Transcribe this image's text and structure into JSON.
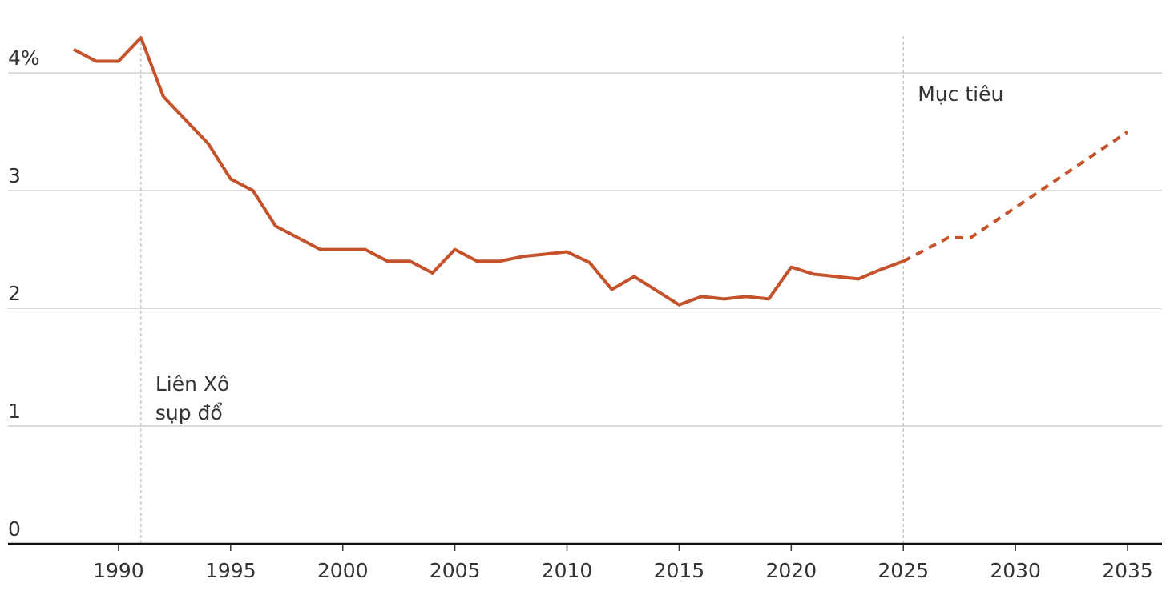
{
  "chart_data": {
    "type": "line",
    "xlim": [
      1985,
      2036.5
    ],
    "xticks": [
      1990,
      1995,
      2000,
      2005,
      2010,
      2015,
      2020,
      2025,
      2030,
      2035
    ],
    "ylim": [
      0,
      4.6
    ],
    "yticks": [
      0,
      1,
      2,
      3,
      {
        "value": 4,
        "label": "4%"
      }
    ],
    "grid": true,
    "series": [
      {
        "color": "#c4522a",
        "dashed": false,
        "x": [
          1988,
          1989,
          1990,
          1991,
          1992,
          1993,
          1994,
          1995,
          1996,
          1997,
          1998,
          1999,
          2000,
          2001,
          2002,
          2003,
          2004,
          2005,
          2006,
          2007,
          2008,
          2009,
          2010,
          2011,
          2012,
          2013,
          2014,
          2015,
          2016,
          2017,
          2018,
          2019,
          2020,
          2021,
          2022,
          2023,
          2024,
          2025
        ],
        "values": [
          4.2,
          4.1,
          4.1,
          4.3,
          3.8,
          3.6,
          3.4,
          3.1,
          3.0,
          2.7,
          2.6,
          2.5,
          2.5,
          2.5,
          2.4,
          2.4,
          2.3,
          2.5,
          2.4,
          2.4,
          2.44,
          2.46,
          2.48,
          2.39,
          2.16,
          2.27,
          2.15,
          2.03,
          2.1,
          2.08,
          2.1,
          2.08,
          2.35,
          2.29,
          2.27,
          2.25,
          2.33,
          2.4
        ]
      },
      {
        "color": "#c4522a",
        "dashed": true,
        "x": [
          2025,
          2027,
          2028,
          2035
        ],
        "values": [
          2.4,
          2.6,
          2.6,
          3.5
        ]
      }
    ],
    "annotations": [
      {
        "x": 1991,
        "text": [
          "Liên Xô",
          "sụp đổ"
        ]
      },
      {
        "x": 2025,
        "text": [
          "Mục tiêu"
        ]
      }
    ]
  }
}
